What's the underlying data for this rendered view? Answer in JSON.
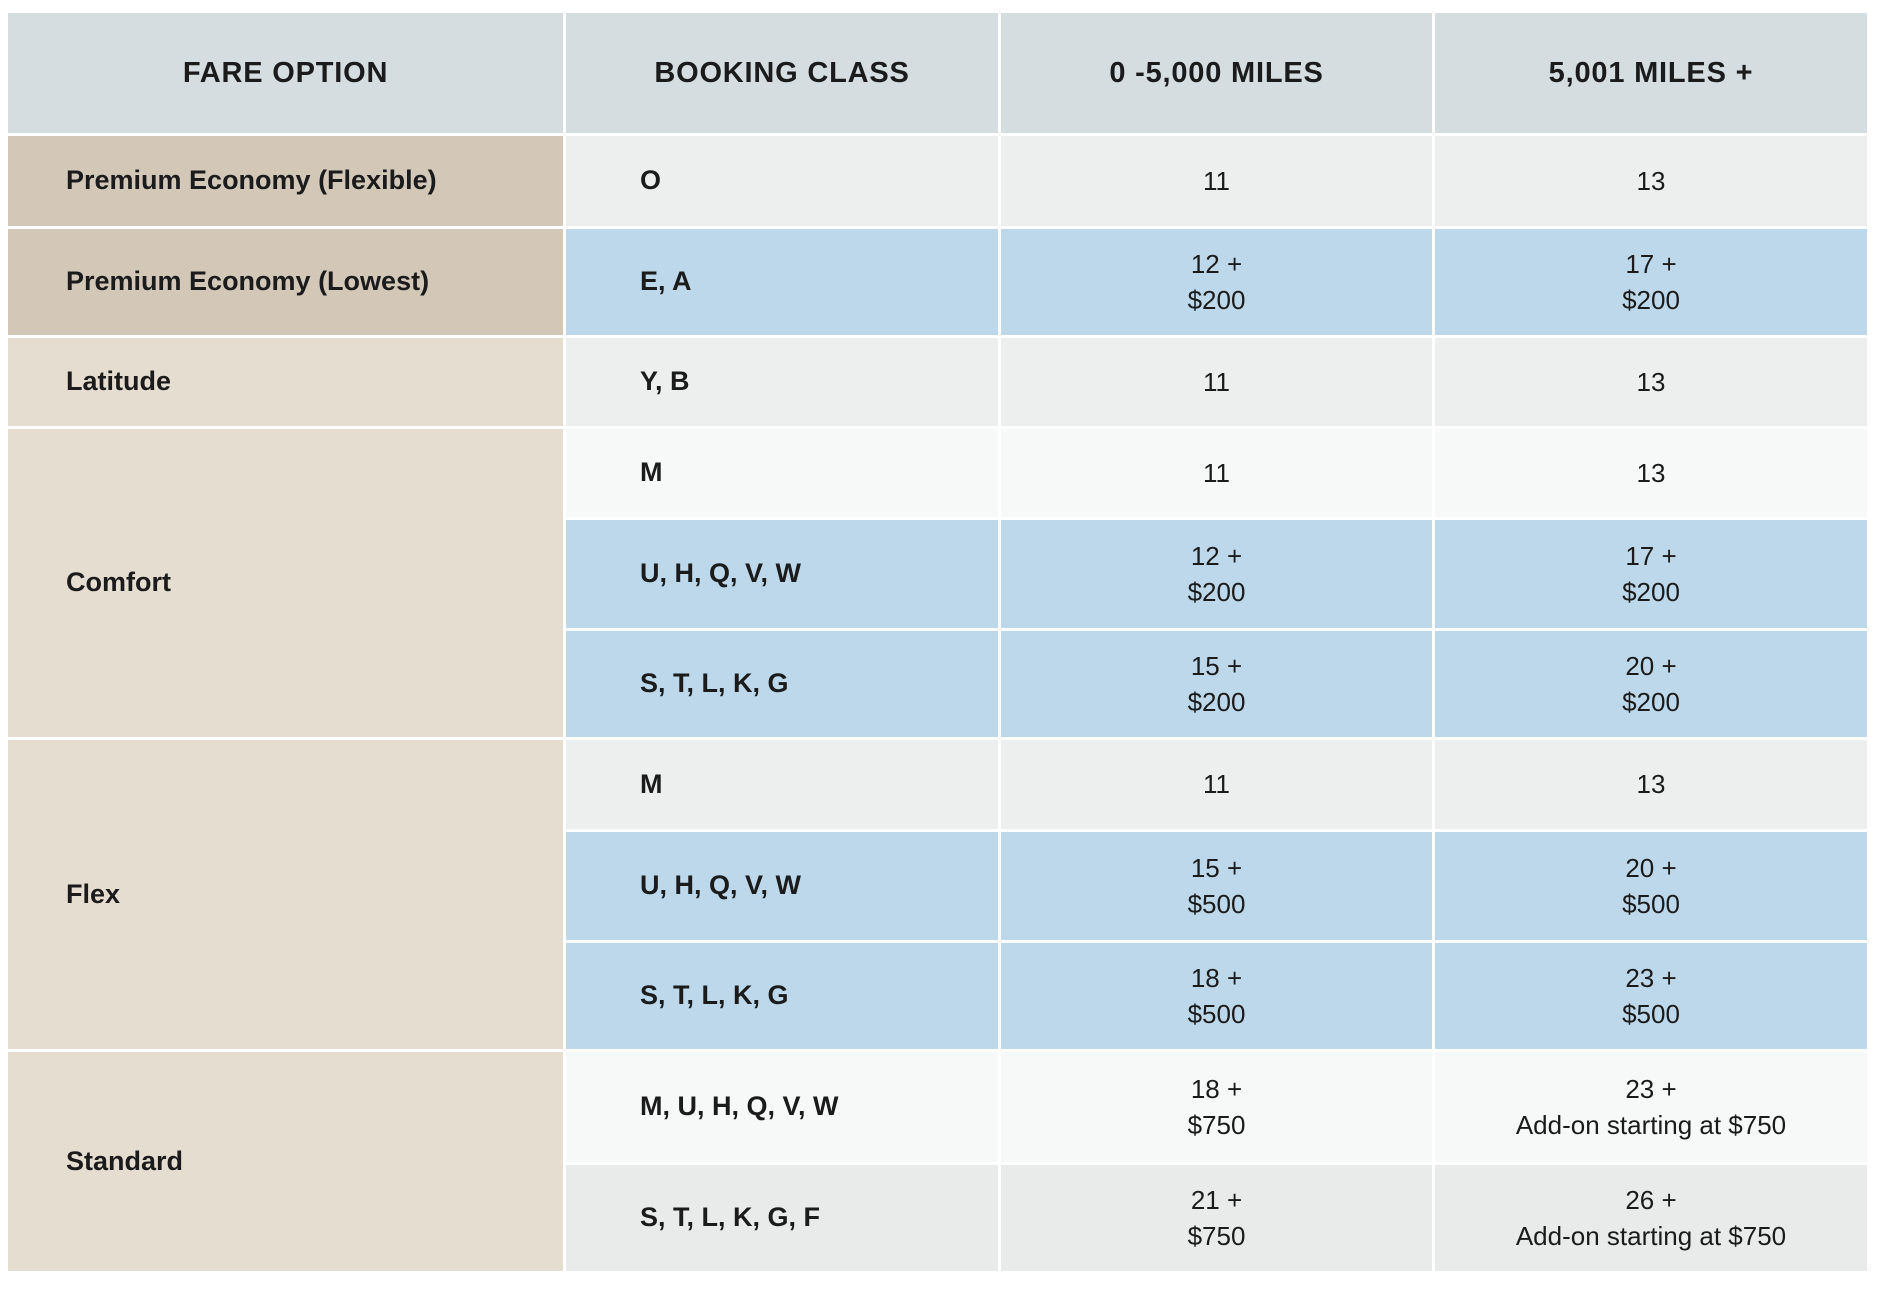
{
  "chart_data": {
    "type": "table",
    "columns": [
      "FARE OPTION",
      "BOOKING CLASS",
      "0 -5,000 MILES",
      "5,001 MILES +"
    ],
    "groups": [
      {
        "fare_option": "Premium Economy (Flexible)",
        "fare_shade": "fare-dark",
        "rows": [
          {
            "booking_class": "O",
            "miles_0_5000": [
              "11"
            ],
            "miles_5001_plus": [
              "13"
            ],
            "shade": "row-gray"
          }
        ]
      },
      {
        "fare_option": "Premium Economy (Lowest)",
        "fare_shade": "fare-dark",
        "rows": [
          {
            "booking_class": "E, A",
            "miles_0_5000": [
              "12 +",
              "$200"
            ],
            "miles_5001_plus": [
              "17 +",
              "$200"
            ],
            "shade": "row-blue"
          }
        ]
      },
      {
        "fare_option": "Latitude",
        "fare_shade": "fare-light",
        "rows": [
          {
            "booking_class": "Y, B",
            "miles_0_5000": [
              "11"
            ],
            "miles_5001_plus": [
              "13"
            ],
            "shade": "row-gray"
          }
        ]
      },
      {
        "fare_option": "Comfort",
        "fare_shade": "fare-light",
        "rows": [
          {
            "booking_class": "M",
            "miles_0_5000": [
              "11"
            ],
            "miles_5001_plus": [
              "13"
            ],
            "shade": "row-white"
          },
          {
            "booking_class": "U, H, Q, V, W",
            "miles_0_5000": [
              "12 +",
              "$200"
            ],
            "miles_5001_plus": [
              "17 +",
              "$200"
            ],
            "shade": "row-blue"
          },
          {
            "booking_class": "S, T, L, K, G",
            "miles_0_5000": [
              "15 +",
              "$200"
            ],
            "miles_5001_plus": [
              "20 +",
              "$200"
            ],
            "shade": "row-blue"
          }
        ]
      },
      {
        "fare_option": "Flex",
        "fare_shade": "fare-light",
        "rows": [
          {
            "booking_class": "M",
            "miles_0_5000": [
              "11"
            ],
            "miles_5001_plus": [
              "13"
            ],
            "shade": "row-gray"
          },
          {
            "booking_class": "U, H, Q, V, W",
            "miles_0_5000": [
              "15 +",
              "$500"
            ],
            "miles_5001_plus": [
              "20 +",
              "$500"
            ],
            "shade": "row-blue"
          },
          {
            "booking_class": "S, T, L, K, G",
            "miles_0_5000": [
              "18 +",
              "$500"
            ],
            "miles_5001_plus": [
              "23 +",
              "$500"
            ],
            "shade": "row-blue"
          }
        ]
      },
      {
        "fare_option": "Standard",
        "fare_shade": "fare-light",
        "rows": [
          {
            "booking_class": "M, U, H, Q, V, W",
            "miles_0_5000": [
              "18 +",
              "$750"
            ],
            "miles_5001_plus": [
              "23 +",
              "Add-on starting at $750"
            ],
            "shade": "row-white"
          },
          {
            "booking_class": "S, T, L, K, G, F",
            "miles_0_5000": [
              "21 +",
              "$750"
            ],
            "miles_5001_plus": [
              "26 +",
              "Add-on starting at $750"
            ],
            "shade": "row-gray2"
          }
        ]
      }
    ]
  },
  "colors": {
    "header-bg": "#d5dde1",
    "fare-dark": "#d3c8b8",
    "fare-light": "#e5ddd0",
    "row-blue": "#bcd8ea",
    "row-gray": "#edeeee",
    "row-gray2": "#e9ebea",
    "row-white": "#f7f8f8",
    "grid": "#ffffff",
    "text": "#1b1b1b"
  }
}
